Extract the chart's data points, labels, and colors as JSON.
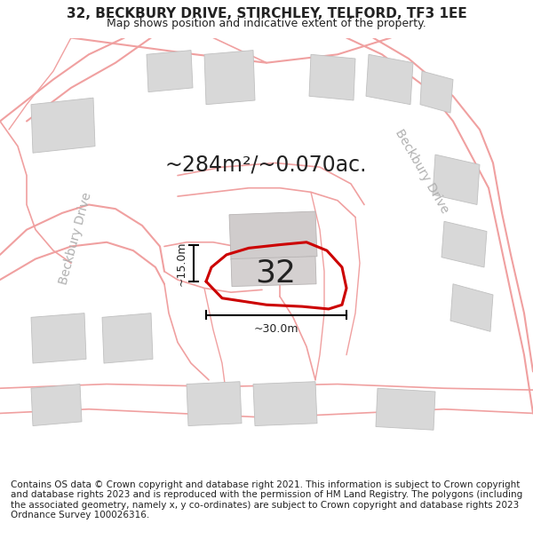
{
  "title": "32, BECKBURY DRIVE, STIRCHLEY, TELFORD, TF3 1EE",
  "subtitle": "Map shows position and indicative extent of the property.",
  "area_label": "~284m²/~0.070ac.",
  "property_number": "32",
  "dim_width": "~30.0m",
  "dim_height": "~15.0m",
  "footer": "Contains OS data © Crown copyright and database right 2021. This information is subject to Crown copyright and database rights 2023 and is reproduced with the permission of HM Land Registry. The polygons (including the associated geometry, namely x, y co-ordinates) are subject to Crown copyright and database rights 2023 Ordnance Survey 100026316.",
  "bg_color": "#ffffff",
  "road_line_color": "#f0a0a0",
  "building_face_color": "#d8d8d8",
  "building_edge_color": "#c0c0c0",
  "plot_outline_color": "#cc0000",
  "text_color": "#222222",
  "road_label_color": "#b0b0b0",
  "title_fontsize": 11,
  "subtitle_fontsize": 9,
  "footer_fontsize": 7.5,
  "area_label_fontsize": 17,
  "number_fontsize": 26,
  "road_label_fontsize": 10,
  "dim_fontsize": 9
}
